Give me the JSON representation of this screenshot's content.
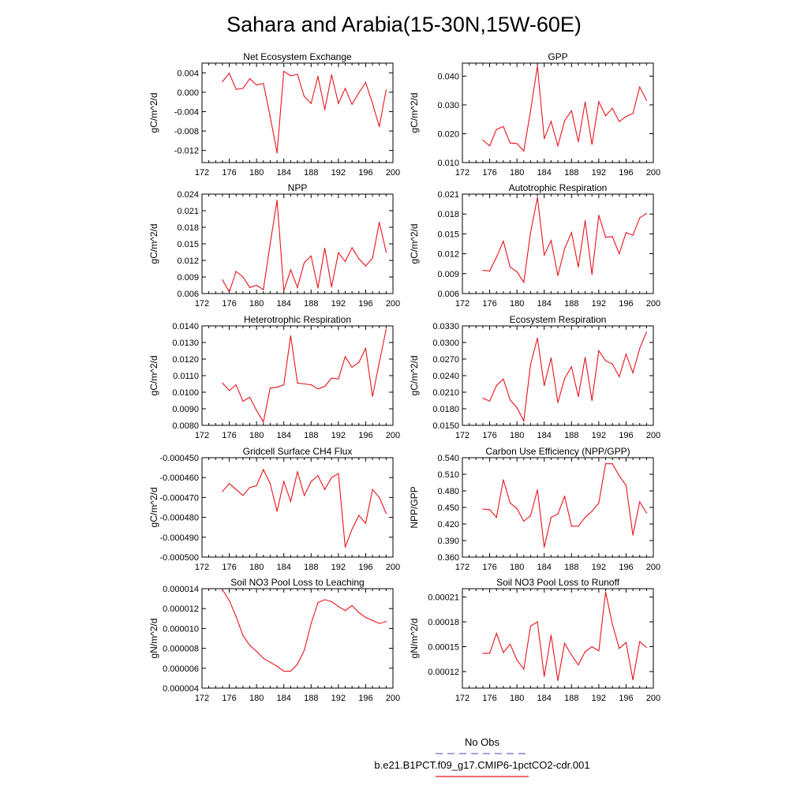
{
  "figure": {
    "title": "Sahara and Arabia(15-30N,15W-60E)",
    "line_color": "#e8141c",
    "obs_line_color": "#6b6bd6"
  },
  "legend": {
    "obs_label": "No Obs",
    "model_label": "b.e21.B1PCT.f09_g17.CMIP6-1pctCO2-cdr.001"
  },
  "chart_data": [
    {
      "type": "line",
      "title": "Net Ecosystem Exchange",
      "ylabel": "gC/m^2/d",
      "xlim": [
        172,
        200
      ],
      "xticks": [
        "172",
        "176",
        "180",
        "184",
        "188",
        "192",
        "196",
        "200"
      ],
      "ylim": [
        -0.0145,
        0.006
      ],
      "yticks": [
        "0.004",
        "0.000",
        "-0.004",
        "-0.008",
        "-0.012"
      ],
      "ytick_values": [
        0.004,
        0.0,
        -0.004,
        -0.008,
        -0.012
      ],
      "x": [
        175,
        176,
        177,
        178,
        179,
        180,
        181,
        182,
        183,
        184,
        185,
        186,
        187,
        188,
        189,
        190,
        191,
        192,
        193,
        194,
        195,
        196,
        197,
        198,
        199
      ],
      "values": [
        0.0022,
        0.0039,
        0.0006,
        0.0008,
        0.0028,
        0.0015,
        0.0018,
        -0.005,
        -0.0125,
        0.0043,
        0.0034,
        0.0037,
        -0.0009,
        -0.0023,
        0.0033,
        -0.0036,
        0.0036,
        -0.0023,
        0.0008,
        -0.0025,
        -0.0001,
        0.002,
        -0.0023,
        -0.0071,
        0.0005
      ]
    },
    {
      "type": "line",
      "title": "GPP",
      "ylabel": "gC/m^2/d",
      "xlim": [
        172,
        200
      ],
      "xticks": [
        "172",
        "176",
        "180",
        "184",
        "188",
        "192",
        "196",
        "200"
      ],
      "ylim": [
        0.01,
        0.0445
      ],
      "yticks": [
        "0.040",
        "0.030",
        "0.020",
        "0.010"
      ],
      "ytick_values": [
        0.04,
        0.03,
        0.02,
        0.01
      ],
      "x": [
        175,
        176,
        177,
        178,
        179,
        180,
        181,
        182,
        183,
        184,
        185,
        186,
        187,
        188,
        189,
        190,
        191,
        192,
        193,
        194,
        195,
        196,
        197,
        198,
        199
      ],
      "values": [
        0.0178,
        0.0158,
        0.0215,
        0.0225,
        0.0168,
        0.0166,
        0.014,
        0.028,
        0.0435,
        0.0183,
        0.0243,
        0.0158,
        0.0246,
        0.028,
        0.0172,
        0.031,
        0.0163,
        0.0311,
        0.0262,
        0.0288,
        0.0242,
        0.026,
        0.027,
        0.0362,
        0.0316
      ]
    },
    {
      "type": "line",
      "title": "NPP",
      "ylabel": "gC/m^2/d",
      "xlim": [
        172,
        200
      ],
      "xticks": [
        "172",
        "176",
        "180",
        "184",
        "188",
        "192",
        "196",
        "200"
      ],
      "ylim": [
        0.006,
        0.024
      ],
      "yticks": [
        "0.024",
        "0.021",
        "0.018",
        "0.015",
        "0.012",
        "0.009",
        "0.006"
      ],
      "ytick_values": [
        0.024,
        0.021,
        0.018,
        0.015,
        0.012,
        0.009,
        0.006
      ],
      "x": [
        175,
        176,
        177,
        178,
        179,
        180,
        181,
        182,
        183,
        184,
        185,
        186,
        187,
        188,
        189,
        190,
        191,
        192,
        193,
        194,
        195,
        196,
        197,
        198,
        199
      ],
      "values": [
        0.0085,
        0.0063,
        0.01,
        0.009,
        0.0071,
        0.0075,
        0.0067,
        0.015,
        0.0229,
        0.0065,
        0.0103,
        0.0071,
        0.0116,
        0.0128,
        0.007,
        0.0142,
        0.0072,
        0.0134,
        0.0118,
        0.0143,
        0.0123,
        0.011,
        0.0124,
        0.0189,
        0.0135
      ]
    },
    {
      "type": "line",
      "title": "Autotrophic Respiration",
      "ylabel": "gC/m^2/d",
      "xlim": [
        172,
        200
      ],
      "xticks": [
        "172",
        "176",
        "180",
        "184",
        "188",
        "192",
        "196",
        "200"
      ],
      "ylim": [
        0.006,
        0.021
      ],
      "yticks": [
        "0.021",
        "0.018",
        "0.015",
        "0.012",
        "0.009",
        "0.006"
      ],
      "ytick_values": [
        0.021,
        0.018,
        0.015,
        0.012,
        0.009,
        0.006
      ],
      "x": [
        175,
        176,
        177,
        178,
        179,
        180,
        181,
        182,
        183,
        184,
        185,
        186,
        187,
        188,
        189,
        190,
        191,
        192,
        193,
        194,
        195,
        196,
        197,
        198,
        199
      ],
      "values": [
        0.0095,
        0.0094,
        0.0115,
        0.0139,
        0.01,
        0.0093,
        0.0077,
        0.0152,
        0.0205,
        0.0118,
        0.014,
        0.0087,
        0.0128,
        0.0152,
        0.01,
        0.017,
        0.0089,
        0.0178,
        0.0145,
        0.0146,
        0.012,
        0.0152,
        0.0148,
        0.0174,
        0.0181
      ]
    },
    {
      "type": "line",
      "title": "Heterotrophic Respiration",
      "ylabel": "gC/m^2/d",
      "xlim": [
        172,
        200
      ],
      "xticks": [
        "172",
        "176",
        "180",
        "184",
        "188",
        "192",
        "196",
        "200"
      ],
      "ylim": [
        0.008,
        0.014
      ],
      "yticks": [
        "0.0140",
        "0.0130",
        "0.0120",
        "0.0110",
        "0.0100",
        "0.0090",
        "0.0080"
      ],
      "ytick_values": [
        0.014,
        0.013,
        0.012,
        0.011,
        0.01,
        0.009,
        0.008
      ],
      "x": [
        175,
        176,
        177,
        178,
        179,
        180,
        181,
        182,
        183,
        184,
        185,
        186,
        187,
        188,
        189,
        190,
        191,
        192,
        193,
        194,
        195,
        196,
        197,
        198,
        199
      ],
      "values": [
        0.01055,
        0.0101,
        0.01045,
        0.00945,
        0.0097,
        0.0089,
        0.0082,
        0.01025,
        0.0103,
        0.01045,
        0.0134,
        0.01055,
        0.0105,
        0.01045,
        0.0102,
        0.01035,
        0.01085,
        0.0108,
        0.01215,
        0.0115,
        0.0118,
        0.01265,
        0.00975,
        0.0118,
        0.0138
      ]
    },
    {
      "type": "line",
      "title": "Ecosystem Respiration",
      "ylabel": "gC/m^2/d",
      "xlim": [
        172,
        200
      ],
      "xticks": [
        "172",
        "176",
        "180",
        "184",
        "188",
        "192",
        "196",
        "200"
      ],
      "ylim": [
        0.015,
        0.033
      ],
      "yticks": [
        "0.0330",
        "0.0300",
        "0.0270",
        "0.0240",
        "0.0210",
        "0.0180",
        "0.0150"
      ],
      "ytick_values": [
        0.033,
        0.03,
        0.027,
        0.024,
        0.021,
        0.018,
        0.015
      ],
      "x": [
        175,
        176,
        177,
        178,
        179,
        180,
        181,
        182,
        183,
        184,
        185,
        186,
        187,
        188,
        189,
        190,
        191,
        192,
        193,
        194,
        195,
        196,
        197,
        198,
        199
      ],
      "values": [
        0.0199,
        0.0194,
        0.0222,
        0.0234,
        0.0196,
        0.0182,
        0.0158,
        0.026,
        0.0308,
        0.0222,
        0.0272,
        0.0191,
        0.0235,
        0.0256,
        0.0202,
        0.0273,
        0.0195,
        0.0285,
        0.0267,
        0.0261,
        0.0238,
        0.0279,
        0.0245,
        0.0289,
        0.0319
      ]
    },
    {
      "type": "line",
      "title": "Gridcell Surface CH4 Flux",
      "ylabel": "gC/m^2/d",
      "xlim": [
        172,
        200
      ],
      "xticks": [
        "172",
        "176",
        "180",
        "184",
        "188",
        "192",
        "196",
        "200"
      ],
      "ylim": [
        -0.0005,
        -0.00045
      ],
      "yticks": [
        "-0.000450",
        "-0.000460",
        "-0.000470",
        "-0.000480",
        "-0.000490",
        "-0.000500"
      ],
      "ytick_values": [
        -0.00045,
        -0.00046,
        -0.00047,
        -0.00048,
        -0.00049,
        -0.0005
      ],
      "x": [
        175,
        176,
        177,
        178,
        179,
        180,
        181,
        182,
        183,
        184,
        185,
        186,
        187,
        188,
        189,
        190,
        191,
        192,
        193,
        194,
        195,
        196,
        197,
        198,
        199
      ],
      "values": [
        -0.000467,
        -0.000463,
        -0.000466,
        -0.000469,
        -0.000465,
        -0.000464,
        -0.000456,
        -0.000463,
        -0.000477,
        -0.000462,
        -0.000472,
        -0.000457,
        -0.000469,
        -0.000462,
        -0.000459,
        -0.000466,
        -0.00046,
        -0.000458,
        -0.000495,
        -0.000486,
        -0.000479,
        -0.000483,
        -0.000466,
        -0.00047,
        -0.000478
      ]
    },
    {
      "type": "line",
      "title": "Carbon Use Efficiency (NPP/GPP)",
      "ylabel": "NPP/GPP",
      "xlim": [
        172,
        200
      ],
      "xticks": [
        "172",
        "176",
        "180",
        "184",
        "188",
        "192",
        "196",
        "200"
      ],
      "ylim": [
        0.36,
        0.54
      ],
      "yticks": [
        "0.540",
        "0.510",
        "0.480",
        "0.450",
        "0.420",
        "0.390",
        "0.360"
      ],
      "ytick_values": [
        0.54,
        0.51,
        0.48,
        0.45,
        0.42,
        0.39,
        0.36
      ],
      "x": [
        175,
        176,
        177,
        178,
        179,
        180,
        181,
        182,
        183,
        184,
        185,
        186,
        187,
        188,
        189,
        190,
        191,
        192,
        193,
        194,
        195,
        196,
        197,
        198,
        199
      ],
      "values": [
        0.447,
        0.446,
        0.432,
        0.5,
        0.458,
        0.448,
        0.425,
        0.435,
        0.482,
        0.378,
        0.432,
        0.438,
        0.47,
        0.416,
        0.416,
        0.432,
        0.443,
        0.458,
        0.529,
        0.529,
        0.507,
        0.49,
        0.4,
        0.46,
        0.44
      ]
    },
    {
      "type": "line",
      "title": "Soil NO3 Pool Loss to Leaching",
      "ylabel": "gN/m^2/d",
      "xlim": [
        172,
        200
      ],
      "xticks": [
        "172",
        "176",
        "180",
        "184",
        "188",
        "192",
        "196",
        "200"
      ],
      "ylim": [
        4e-06,
        1.4e-05
      ],
      "yticks": [
        "0.000014",
        "0.000012",
        "0.000010",
        "0.000008",
        "0.000006",
        "0.000004"
      ],
      "ytick_values": [
        1.4e-05,
        1.2e-05,
        1e-05,
        8e-06,
        6e-06,
        4e-06
      ],
      "x": [
        175,
        176,
        177,
        178,
        179,
        180,
        181,
        182,
        183,
        184,
        185,
        186,
        187,
        188,
        189,
        190,
        191,
        192,
        193,
        194,
        195,
        196,
        197,
        198,
        199
      ],
      "values": [
        1.39e-05,
        1.28e-05,
        1.12e-05,
        9.3e-06,
        8.3e-06,
        7.7e-06,
        7e-06,
        6.6e-06,
        6.2e-06,
        5.7e-06,
        5.7e-06,
        6.4e-06,
        7.8e-06,
        1.05e-05,
        1.26e-05,
        1.29e-05,
        1.27e-05,
        1.22e-05,
        1.18e-05,
        1.23e-05,
        1.16e-05,
        1.11e-05,
        1.08e-05,
        1.05e-05,
        1.07e-05
      ]
    },
    {
      "type": "line",
      "title": "Soil NO3 Pool Loss to Runoff",
      "ylabel": "gN/m^2/d",
      "xlim": [
        172,
        200
      ],
      "xticks": [
        "172",
        "176",
        "180",
        "184",
        "188",
        "192",
        "196",
        "200"
      ],
      "ylim": [
        0.0001,
        0.00022
      ],
      "yticks": [
        "0.00021",
        "0.00018",
        "0.00015",
        "0.00012"
      ],
      "ytick_values": [
        0.00021,
        0.00018,
        0.00015,
        0.00012
      ],
      "x": [
        175,
        176,
        177,
        178,
        179,
        180,
        181,
        182,
        183,
        184,
        185,
        186,
        187,
        188,
        189,
        190,
        191,
        192,
        193,
        194,
        195,
        196,
        197,
        198,
        199
      ],
      "values": [
        0.000142,
        0.000142,
        0.000166,
        0.000143,
        0.000153,
        0.000134,
        0.000123,
        0.000175,
        0.00018,
        0.000114,
        0.000164,
        0.000109,
        0.000154,
        0.00014,
        0.000128,
        0.000144,
        0.00015,
        0.000145,
        0.000216,
        0.000177,
        0.000148,
        0.000155,
        0.00011,
        0.000156,
        0.000149
      ]
    }
  ]
}
